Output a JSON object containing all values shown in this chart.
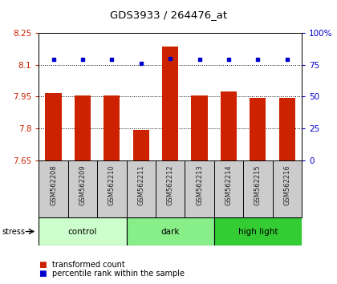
{
  "title": "GDS3933 / 264476_at",
  "samples": [
    "GSM562208",
    "GSM562209",
    "GSM562210",
    "GSM562211",
    "GSM562212",
    "GSM562213",
    "GSM562214",
    "GSM562215",
    "GSM562216"
  ],
  "bar_values": [
    7.965,
    7.955,
    7.955,
    7.795,
    8.185,
    7.955,
    7.975,
    7.945,
    7.945
  ],
  "dot_values": [
    79,
    79,
    79,
    76,
    80,
    79,
    79,
    79,
    79
  ],
  "groups": [
    {
      "label": "control",
      "start": 0,
      "end": 3,
      "color": "#ccffcc"
    },
    {
      "label": "dark",
      "start": 3,
      "end": 6,
      "color": "#88ee88"
    },
    {
      "label": "high light",
      "start": 6,
      "end": 9,
      "color": "#33cc33"
    }
  ],
  "ylim_left": [
    7.65,
    8.25
  ],
  "ylim_right": [
    0,
    100
  ],
  "yticks_left": [
    7.65,
    7.8,
    7.95,
    8.1,
    8.25
  ],
  "ytick_labels_left": [
    "7.65",
    "7.8",
    "7.95",
    "8.1",
    "8.25"
  ],
  "yticks_right": [
    0,
    25,
    50,
    75,
    100
  ],
  "ytick_labels_right": [
    "0",
    "25",
    "50",
    "75",
    "100%"
  ],
  "bar_color": "#cc2200",
  "dot_color": "#0000cc",
  "legend_red_label": "transformed count",
  "legend_blue_label": "percentile rank within the sample",
  "stress_label": "stress",
  "bar_width": 0.55
}
